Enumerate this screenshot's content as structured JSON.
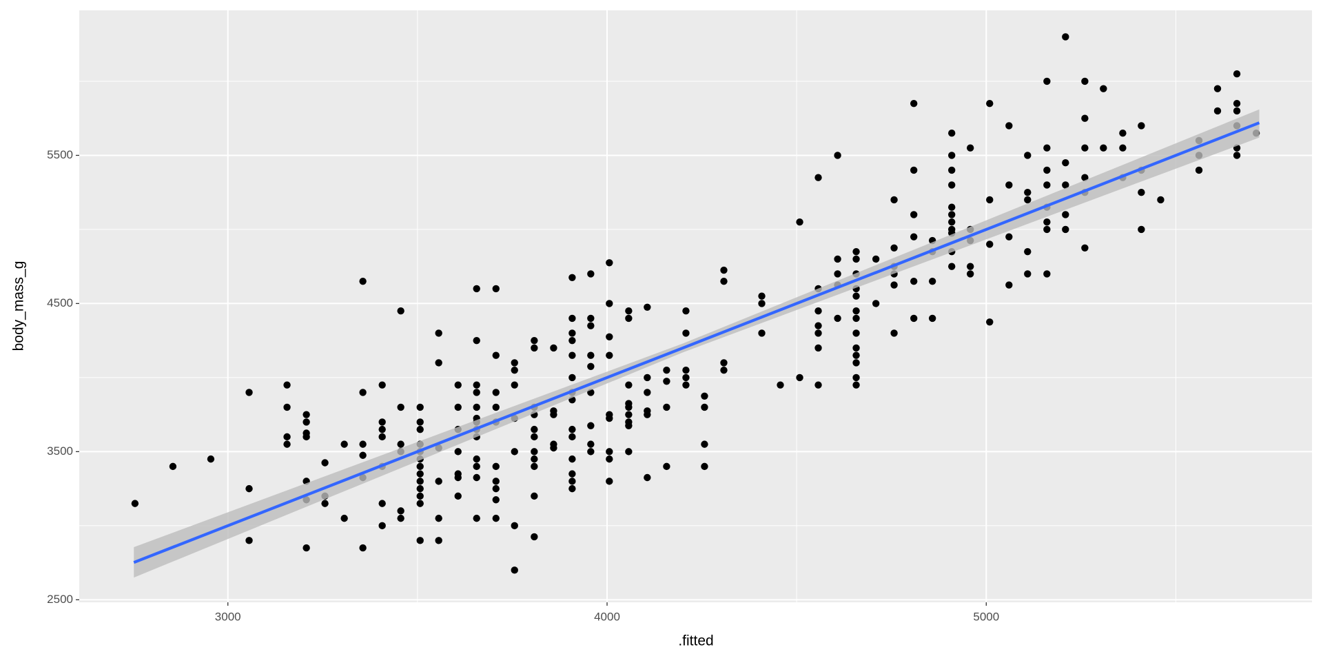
{
  "chart_data": {
    "type": "scatter",
    "x_label": ".fitted",
    "y_label": "body_mass_g",
    "xlim": [
      2608,
      5859
    ],
    "ylim": [
      2483,
      6479
    ],
    "xticks": [
      3000,
      4000,
      5000
    ],
    "yticks": [
      2500,
      3500,
      4500,
      5500
    ],
    "x_minor_ticks": [
      3500,
      4500,
      5500
    ],
    "y_minor_ticks": [
      3000,
      4000,
      5000,
      6000
    ],
    "grid": true,
    "point_color": "#000000",
    "x": [
      2755,
      2855,
      2955,
      3056,
      3056,
      3056,
      3156,
      3156,
      3156,
      3156,
      3207,
      3207,
      3207,
      3207,
      3207,
      3207,
      3207,
      3256,
      3256,
      3256,
      3307,
      3307,
      3356,
      3356,
      3356,
      3356,
      3356,
      3356,
      3407,
      3407,
      3407,
      3407,
      3407,
      3407,
      3407,
      3456,
      3456,
      3456,
      3456,
      3456,
      3456,
      3507,
      3507,
      3507,
      3507,
      3507,
      3507,
      3507,
      3507,
      3507,
      3507,
      3507,
      3507,
      3507,
      3556,
      3556,
      3556,
      3556,
      3556,
      3556,
      3607,
      3607,
      3607,
      3607,
      3607,
      3607,
      3607,
      3656,
      3656,
      3656,
      3656,
      3656,
      3656,
      3656,
      3656,
      3656,
      3656,
      3656,
      3656,
      3656,
      3707,
      3707,
      3707,
      3707,
      3707,
      3707,
      3707,
      3707,
      3707,
      3707,
      3756,
      3756,
      3756,
      3756,
      3756,
      3756,
      3756,
      3808,
      3808,
      3808,
      3808,
      3808,
      3808,
      3808,
      3808,
      3808,
      3808,
      3808,
      3859,
      3859,
      3859,
      3859,
      3859,
      3908,
      3908,
      3908,
      3908,
      3908,
      3908,
      3908,
      3908,
      3908,
      3908,
      3908,
      3908,
      3908,
      3908,
      3957,
      3957,
      3957,
      3957,
      3957,
      3957,
      3957,
      3957,
      3957,
      4006,
      4006,
      4006,
      4006,
      4006,
      4006,
      4006,
      4006,
      4006,
      4057,
      4057,
      4057,
      4057,
      4057,
      4057,
      4057,
      4057,
      4057,
      4106,
      4106,
      4106,
      4106,
      4106,
      4106,
      4157,
      4157,
      4157,
      4157,
      4208,
      4208,
      4208,
      4208,
      4208,
      4257,
      4257,
      4257,
      4257,
      4308,
      4308,
      4308,
      4308,
      4408,
      4408,
      4408,
      4457,
      4508,
      4508,
      4557,
      4557,
      4557,
      4557,
      4557,
      4557,
      4557,
      4608,
      4608,
      4608,
      4608,
      4608,
      4657,
      4657,
      4657,
      4657,
      4657,
      4657,
      4657,
      4657,
      4657,
      4657,
      4657,
      4657,
      4657,
      4709,
      4709,
      4757,
      4757,
      4757,
      4757,
      4757,
      4757,
      4809,
      4809,
      4809,
      4809,
      4809,
      4809,
      4858,
      4858,
      4858,
      4858,
      4909,
      4909,
      4909,
      4909,
      4909,
      4909,
      4909,
      4909,
      4909,
      4909,
      4909,
      4958,
      4958,
      4958,
      4958,
      4958,
      5009,
      5009,
      5009,
      5009,
      5060,
      5060,
      5060,
      5060,
      5109,
      5109,
      5109,
      5109,
      5109,
      5160,
      5160,
      5160,
      5160,
      5160,
      5160,
      5160,
      5160,
      5209,
      5209,
      5209,
      5209,
      5209,
      5260,
      5260,
      5260,
      5260,
      5260,
      5260,
      5309,
      5309,
      5360,
      5360,
      5360,
      5409,
      5409,
      5409,
      5409,
      5460,
      5561,
      5561,
      5561,
      5610,
      5610,
      5661,
      5661,
      5661,
      5661,
      5661,
      5661,
      5712
    ],
    "y": [
      3150,
      3400,
      3450,
      3900,
      3250,
      2900,
      3950,
      3800,
      3600,
      3550,
      3750,
      3700,
      3625,
      3600,
      3300,
      3175,
      2850,
      3425,
      3200,
      3150,
      3550,
      3050,
      4650,
      3900,
      3550,
      3475,
      3325,
      2850,
      3950,
      3700,
      3650,
      3600,
      3400,
      3150,
      3000,
      4450,
      3800,
      3550,
      3500,
      3100,
      3050,
      3800,
      3700,
      3650,
      3550,
      3500,
      3450,
      3400,
      3350,
      3300,
      3250,
      3200,
      3150,
      2900,
      4300,
      4100,
      3525,
      3300,
      3050,
      2900,
      3950,
      3800,
      3650,
      3500,
      3350,
      3325,
      3200,
      4600,
      4250,
      3950,
      3900,
      3800,
      3725,
      3700,
      3650,
      3600,
      3450,
      3400,
      3325,
      3050,
      4600,
      4150,
      3900,
      3800,
      3700,
      3400,
      3300,
      3250,
      3175,
      3050,
      4100,
      4050,
      3950,
      3725,
      3500,
      3000,
      2700,
      4250,
      4200,
      3800,
      3750,
      3650,
      3600,
      3500,
      3450,
      3400,
      3200,
      2925,
      4200,
      3775,
      3750,
      3550,
      3525,
      4675,
      4400,
      4300,
      4250,
      4150,
      4000,
      3900,
      3850,
      3650,
      3600,
      3450,
      3350,
      3300,
      3250,
      4700,
      4400,
      4350,
      4150,
      4075,
      3900,
      3675,
      3550,
      3500,
      4775,
      4500,
      4275,
      4150,
      3750,
      3725,
      3500,
      3450,
      3300,
      4450,
      4400,
      3950,
      3825,
      3800,
      3750,
      3700,
      3675,
      3500,
      4475,
      4000,
      3900,
      3775,
      3750,
      3325,
      4050,
      3975,
      3800,
      3400,
      4450,
      4300,
      4050,
      4000,
      3950,
      3875,
      3800,
      3550,
      3400,
      4725,
      4650,
      4100,
      4050,
      4550,
      4500,
      4300,
      3950,
      5050,
      4000,
      5350,
      4600,
      4450,
      4350,
      4300,
      4200,
      3950,
      5500,
      4800,
      4700,
      4625,
      4400,
      4850,
      4800,
      4700,
      4600,
      4550,
      4450,
      4400,
      4300,
      4200,
      4150,
      4100,
      4000,
      3950,
      4800,
      4500,
      5200,
      4875,
      4750,
      4700,
      4625,
      4300,
      5850,
      5400,
      5100,
      4950,
      4650,
      4400,
      4925,
      4850,
      4650,
      4400,
      5650,
      5500,
      5400,
      5300,
      5150,
      5100,
      5050,
      5000,
      4975,
      4850,
      4750,
      5550,
      5000,
      4925,
      4750,
      4700,
      5850,
      5200,
      4900,
      4375,
      5700,
      5300,
      4950,
      4625,
      5500,
      5250,
      5200,
      4850,
      4700,
      6000,
      5550,
      5400,
      5300,
      5150,
      5050,
      5000,
      4700,
      6300,
      5450,
      5300,
      5100,
      5000,
      6000,
      5750,
      5550,
      5350,
      5250,
      4875,
      5950,
      5550,
      5650,
      5550,
      5350,
      5700,
      5400,
      5250,
      5000,
      5200,
      5600,
      5500,
      5400,
      5950,
      5800,
      6050,
      5850,
      5800,
      5700,
      5550,
      5500,
      5650
    ],
    "fit": {
      "color": "#3366FF",
      "band_color": "#bdbdbd",
      "x": [
        2752,
        4200,
        5720
      ],
      "y": [
        2752,
        4200,
        5720
      ],
      "lower": [
        2650,
        4170,
        5620
      ],
      "upper": [
        2855,
        4230,
        5810
      ]
    }
  }
}
